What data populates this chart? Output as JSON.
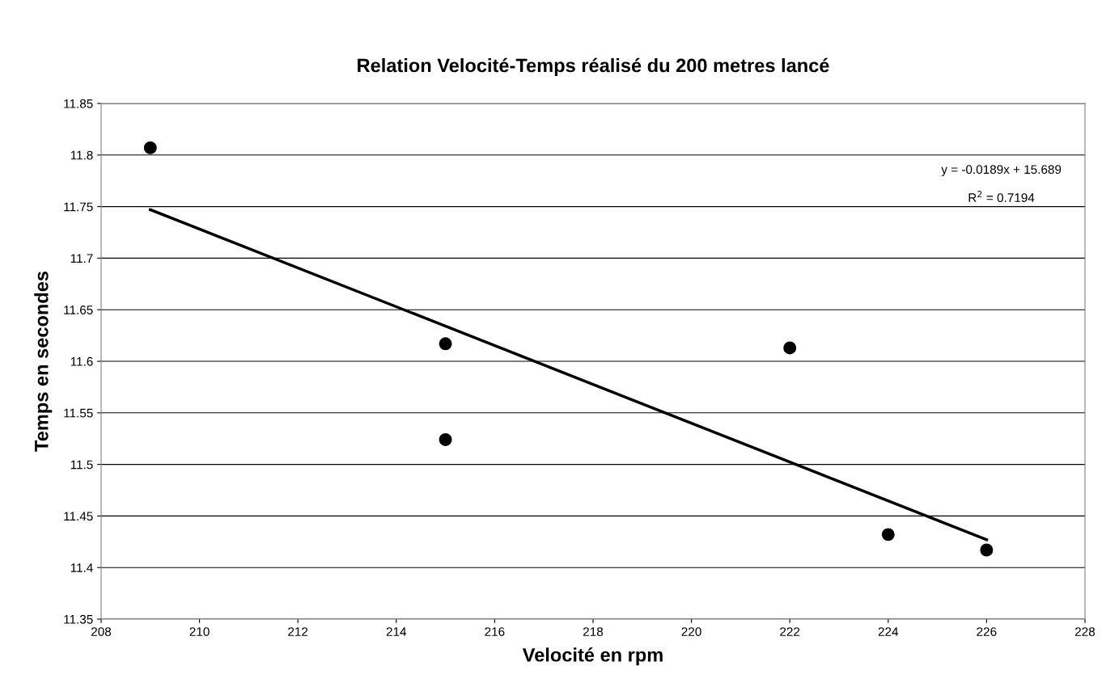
{
  "chart_data": {
    "type": "scatter",
    "title": "Relation Velocité-Temps réalisé du 200 metres lancé",
    "xlabel": "Velocité en rpm",
    "ylabel": "Temps en secondes",
    "series": [
      {
        "color": "#000000",
        "x": [
          209,
          215,
          215,
          222,
          224,
          226
        ],
        "values": [
          11.807,
          11.617,
          11.524,
          11.613,
          11.432,
          11.417
        ],
        "marker": "circle"
      },
      {
        "type": "line",
        "color": "#000000",
        "x": [
          209,
          226
        ],
        "values": [
          11.747,
          11.427
        ],
        "marker": "none",
        "line_style": "solid"
      }
    ],
    "annotations": [
      "y = -0.0189x + 15.689",
      "R$^{2}$ = 0.7194"
    ],
    "xlim": [
      208,
      228
    ],
    "xticks": [
      208,
      210,
      212,
      214,
      216,
      218,
      220,
      222,
      224,
      226,
      228
    ],
    "ylim": [
      11.35,
      11.85
    ],
    "yticks": [
      11.35,
      11.4,
      11.45,
      11.5,
      11.55,
      11.6,
      11.65,
      11.7,
      11.75,
      11.8,
      11.85
    ],
    "grid": "y",
    "legend": false
  }
}
